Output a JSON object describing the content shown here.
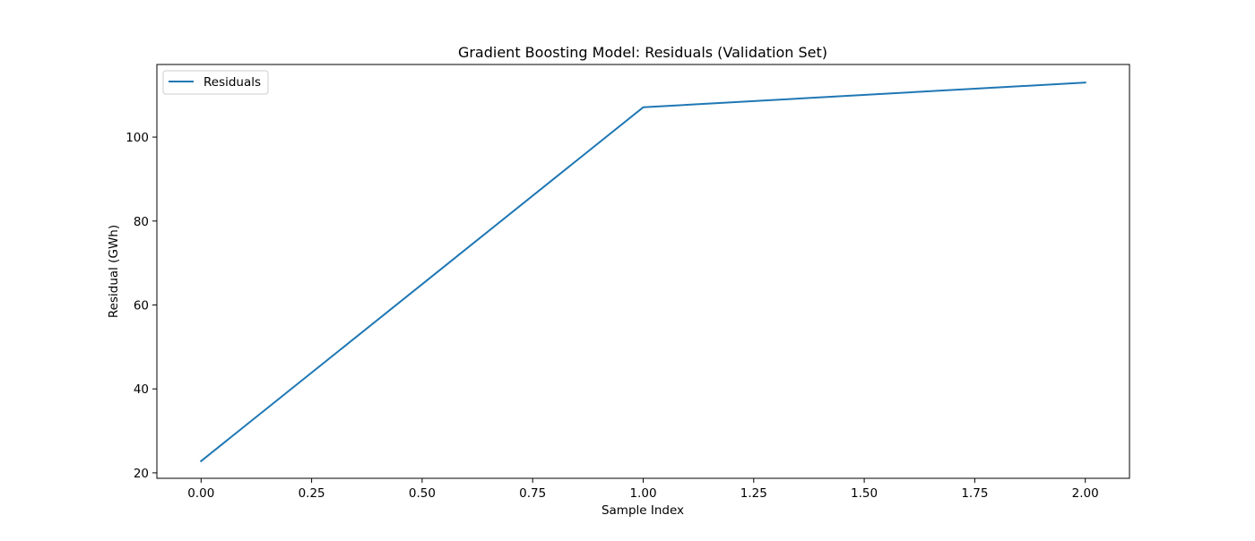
{
  "chart_data": {
    "type": "line",
    "title": "Gradient Boosting Model: Residuals (Validation Set)",
    "xlabel": "Sample Index",
    "ylabel": "Residual (GWh)",
    "xlim": [
      -0.1,
      2.1
    ],
    "ylim": [
      18.7,
      117.3
    ],
    "x_ticks": [
      0.0,
      0.25,
      0.5,
      0.75,
      1.0,
      1.25,
      1.5,
      1.75,
      2.0
    ],
    "x_tick_labels": [
      "0.00",
      "0.25",
      "0.50",
      "0.75",
      "1.00",
      "1.25",
      "1.50",
      "1.75",
      "2.00"
    ],
    "y_ticks": [
      20,
      40,
      60,
      80,
      100
    ],
    "y_tick_labels": [
      "20",
      "40",
      "60",
      "80",
      "100"
    ],
    "grid": false,
    "legend_position": "upper-left",
    "series": [
      {
        "name": "Residuals",
        "color": "#1f77b4",
        "x": [
          0,
          1,
          2
        ],
        "y": [
          22.8,
          107.1,
          113.0
        ]
      }
    ]
  }
}
